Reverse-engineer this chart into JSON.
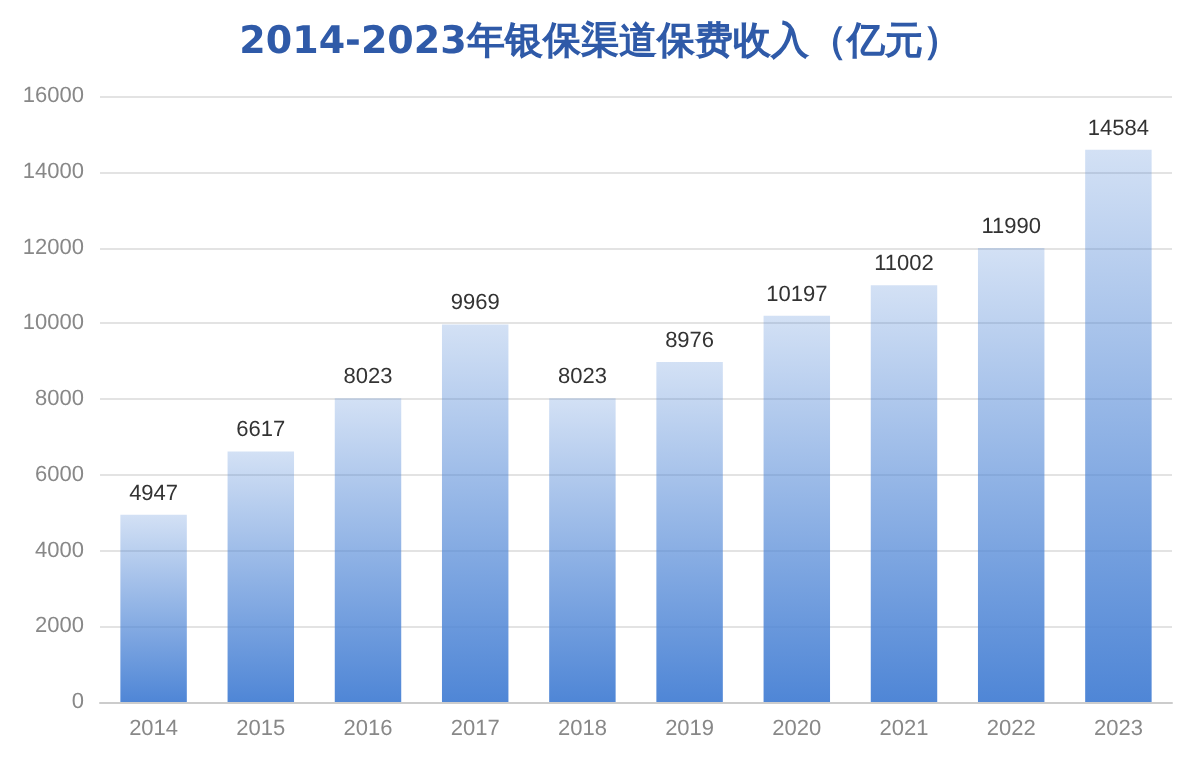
{
  "chart_data": {
    "type": "bar",
    "title": "2014-2023年银保渠道保费收入（亿元）",
    "categories": [
      "2014",
      "2015",
      "2016",
      "2017",
      "2018",
      "2019",
      "2020",
      "2021",
      "2022",
      "2023"
    ],
    "values": [
      4947,
      6617,
      8023,
      9969,
      8023,
      8976,
      10197,
      11002,
      11990,
      14584
    ],
    "color": "#4f86d6",
    "ylim": [
      0,
      16000
    ],
    "yticks": [
      0,
      2000,
      4000,
      6000,
      8000,
      10000,
      12000,
      14000,
      16000
    ],
    "grid": "y",
    "data_labels": true
  }
}
